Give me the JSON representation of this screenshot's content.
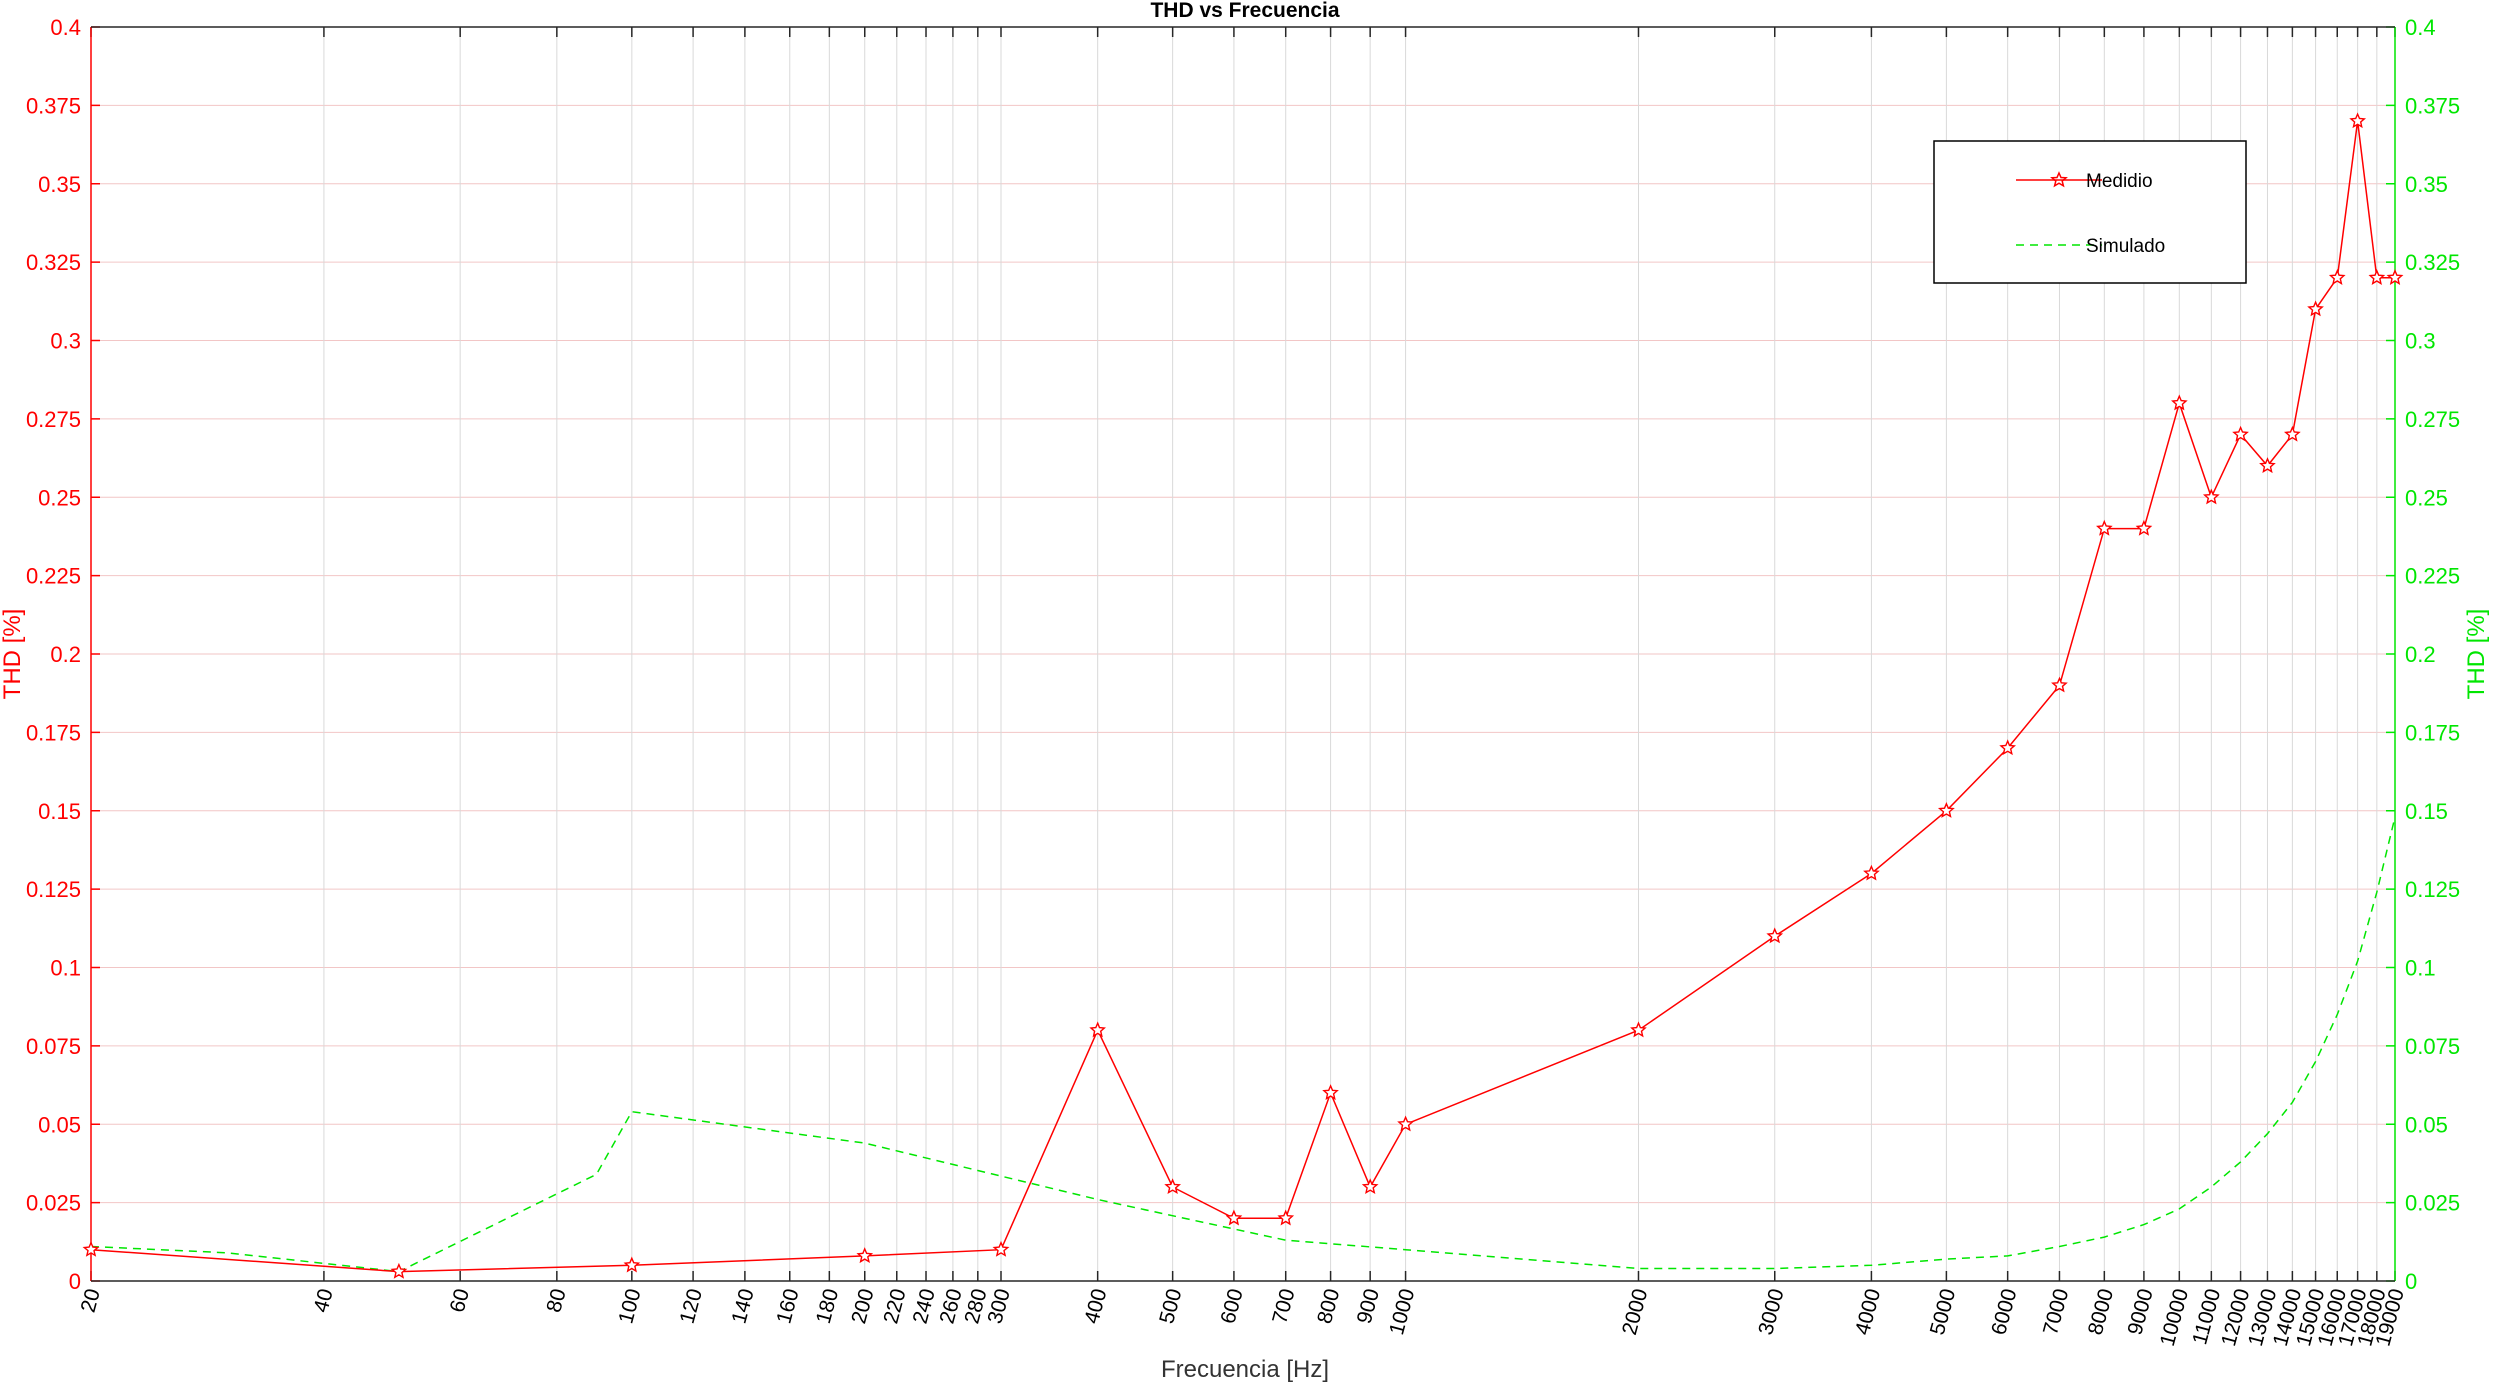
{
  "chart_data": {
    "type": "line",
    "title": "THD vs Frecuencia",
    "xlabel": "Frecuencia [Hz]",
    "ylabel_left": "THD [%]",
    "ylabel_right": "THD [%]",
    "x_scale": "log",
    "xlim": [
      20,
      19000
    ],
    "ylim": [
      0,
      0.4
    ],
    "grid": true,
    "legend_position": "top-right",
    "colors": {
      "left_axis": "#ff0000",
      "right_axis": "#00e600",
      "measured": "#ff0000",
      "simulated": "#00e600"
    },
    "x_ticks": [
      20,
      40,
      60,
      80,
      100,
      120,
      140,
      160,
      180,
      200,
      220,
      240,
      260,
      280,
      300,
      400,
      500,
      600,
      700,
      800,
      900,
      1000,
      2000,
      3000,
      4000,
      5000,
      6000,
      7000,
      8000,
      9000,
      10000,
      11000,
      12000,
      13000,
      14000,
      15000,
      16000,
      17000,
      18000,
      19000
    ],
    "y_ticks": [
      "0",
      "0.025",
      "0.05",
      "0.075",
      "0.1",
      "0.125",
      "0.15",
      "0.175",
      "0.2",
      "0.225",
      "0.25",
      "0.275",
      "0.3",
      "0.325",
      "0.35",
      "0.375",
      "0.4"
    ],
    "y_ticks_right": [
      "0",
      "0.025",
      "0.05",
      "0.075",
      "0.1",
      "0.125",
      "0.15",
      "0.175",
      "0.2",
      "0.225",
      "0.25",
      "0.275",
      "0.3",
      "0.325",
      "0.35",
      "0.375",
      "0.4"
    ],
    "series": [
      {
        "name": "Medidio",
        "style": "solid-star",
        "x": [
          20,
          50,
          100,
          200,
          300,
          400,
          500,
          600,
          700,
          800,
          900,
          1000,
          2000,
          3000,
          4000,
          5000,
          6000,
          7000,
          8000,
          9000,
          10000,
          11000,
          12000,
          13000,
          14000,
          15000,
          16000,
          17000,
          18000,
          19000
        ],
        "y": [
          0.01,
          0.003,
          0.005,
          0.008,
          0.01,
          0.08,
          0.03,
          0.02,
          0.02,
          0.06,
          0.03,
          0.05,
          0.08,
          0.11,
          0.13,
          0.15,
          0.17,
          0.19,
          0.24,
          0.24,
          0.28,
          0.25,
          0.27,
          0.26,
          0.27,
          0.31,
          0.32,
          0.37,
          0.32,
          0.32
        ]
      },
      {
        "name": "Simulado",
        "style": "dashed",
        "x": [
          20,
          30,
          50,
          90,
          100,
          200,
          400,
          700,
          1000,
          2000,
          3000,
          4000,
          5000,
          6000,
          7000,
          8000,
          9000,
          10000,
          11000,
          12000,
          13000,
          14000,
          15000,
          16000,
          17000,
          18000,
          19000
        ],
        "y": [
          0.011,
          0.009,
          0.003,
          0.034,
          0.054,
          0.044,
          0.026,
          0.013,
          0.01,
          0.004,
          0.004,
          0.005,
          0.007,
          0.008,
          0.011,
          0.014,
          0.018,
          0.023,
          0.03,
          0.038,
          0.047,
          0.057,
          0.07,
          0.085,
          0.102,
          0.124,
          0.148
        ]
      }
    ]
  }
}
